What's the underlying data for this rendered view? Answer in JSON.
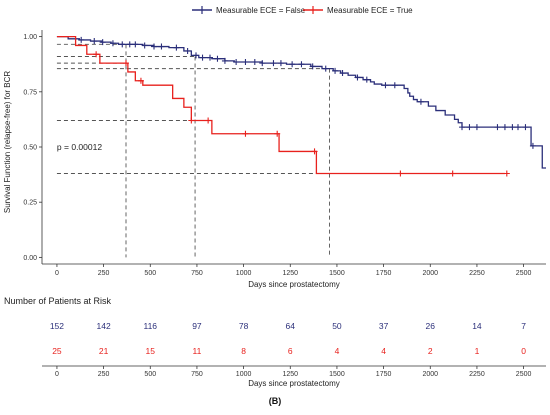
{
  "legend": {
    "placement": "top-center",
    "items": [
      {
        "label": "Measurable ECE = False",
        "color": "#2b2f7a"
      },
      {
        "label": "Measurable ECE = True",
        "color": "#e8211d"
      }
    ]
  },
  "chart_data": [
    {
      "type": "line",
      "ylabel": "Survival Function (relapse-free) for BCR",
      "xlabel": "Days since prostatectomy",
      "xlim": [
        -80,
        2620
      ],
      "ylim": [
        -0.03,
        1.03
      ],
      "x_ticks": [
        0,
        250,
        500,
        750,
        1000,
        1250,
        1500,
        1750,
        2000,
        2250,
        2500
      ],
      "y_ticks": [
        0.0,
        0.25,
        0.5,
        0.75,
        1.0
      ],
      "y_tick_labels": [
        "0.00",
        "0.25",
        "0.50",
        "0.75",
        "1.00"
      ],
      "grid": false,
      "annotation": "p = 0.00012",
      "annotation_pos": {
        "x": 0,
        "y": 0.5
      },
      "series": [
        {
          "name": "Measurable ECE = False",
          "color": "#2b2f7a",
          "step_points": [
            [
              0,
              1.0
            ],
            [
              60,
              0.99
            ],
            [
              120,
              0.985
            ],
            [
              180,
              0.98
            ],
            [
              240,
              0.975
            ],
            [
              290,
              0.97
            ],
            [
              330,
              0.965
            ],
            [
              460,
              0.96
            ],
            [
              520,
              0.955
            ],
            [
              600,
              0.95
            ],
            [
              680,
              0.935
            ],
            [
              720,
              0.915
            ],
            [
              760,
              0.905
            ],
            [
              830,
              0.9
            ],
            [
              900,
              0.89
            ],
            [
              950,
              0.885
            ],
            [
              1100,
              0.88
            ],
            [
              1230,
              0.875
            ],
            [
              1360,
              0.865
            ],
            [
              1420,
              0.855
            ],
            [
              1480,
              0.845
            ],
            [
              1520,
              0.835
            ],
            [
              1560,
              0.825
            ],
            [
              1600,
              0.815
            ],
            [
              1640,
              0.805
            ],
            [
              1680,
              0.795
            ],
            [
              1700,
              0.785
            ],
            [
              1740,
              0.78
            ],
            [
              1860,
              0.765
            ],
            [
              1880,
              0.745
            ],
            [
              1890,
              0.73
            ],
            [
              1910,
              0.715
            ],
            [
              1930,
              0.705
            ],
            [
              1990,
              0.685
            ],
            [
              2030,
              0.665
            ],
            [
              2080,
              0.645
            ],
            [
              2130,
              0.625
            ],
            [
              2150,
              0.61
            ],
            [
              2170,
              0.59
            ],
            [
              2540,
              0.505
            ],
            [
              2600,
              0.405
            ],
            [
              2620,
              0.405
            ]
          ],
          "censor_x": [
            130,
            200,
            245,
            300,
            350,
            390,
            420,
            470,
            520,
            560,
            640,
            700,
            745,
            780,
            820,
            860,
            900,
            960,
            1010,
            1060,
            1100,
            1160,
            1200,
            1260,
            1310,
            1370,
            1440,
            1490,
            1530,
            1610,
            1660,
            1760,
            1810,
            1950,
            2170,
            2210,
            2250,
            2360,
            2400,
            2440,
            2470,
            2510,
            2550
          ]
        },
        {
          "name": "Measurable ECE = True",
          "color": "#e8211d",
          "step_points": [
            [
              0,
              1.0
            ],
            [
              100,
              0.96
            ],
            [
              160,
              0.92
            ],
            [
              230,
              0.88
            ],
            [
              380,
              0.84
            ],
            [
              420,
              0.8
            ],
            [
              460,
              0.78
            ],
            [
              620,
              0.72
            ],
            [
              680,
              0.68
            ],
            [
              720,
              0.62
            ],
            [
              830,
              0.56
            ],
            [
              1190,
              0.48
            ],
            [
              1390,
              0.38
            ],
            [
              2400,
              0.38
            ]
          ],
          "censor_x": [
            210,
            370,
            450,
            720,
            810,
            1010,
            1180,
            1380,
            1840,
            2120,
            2410
          ]
        }
      ],
      "reference_lines": [
        {
          "x": 370,
          "y_upper": 0.965
        },
        {
          "x": 740,
          "y_upper": 0.91
        },
        {
          "x": 1460,
          "y_upper": 0.855
        }
      ],
      "reference_lines_lower_y": [
        0.88,
        0.62,
        0.38
      ]
    },
    {
      "type": "table",
      "title": "Number of Patients at Risk",
      "xlabel": "Days since prostatectomy",
      "x_ticks": [
        0,
        250,
        500,
        750,
        1000,
        1250,
        1500,
        1750,
        2000,
        2250,
        2500
      ],
      "rows": [
        {
          "name": "Measurable ECE = False",
          "color": "#2b2f7a",
          "values": [
            "152",
            "142",
            "116",
            "97",
            "78",
            "64",
            "50",
            "37",
            "26",
            "14",
            "7"
          ]
        },
        {
          "name": "Measurable ECE = True",
          "color": "#e8211d",
          "values": [
            "25",
            "21",
            "15",
            "11",
            "8",
            "6",
            "4",
            "4",
            "2",
            "1",
            "0"
          ]
        }
      ]
    }
  ],
  "caption": "(B)"
}
